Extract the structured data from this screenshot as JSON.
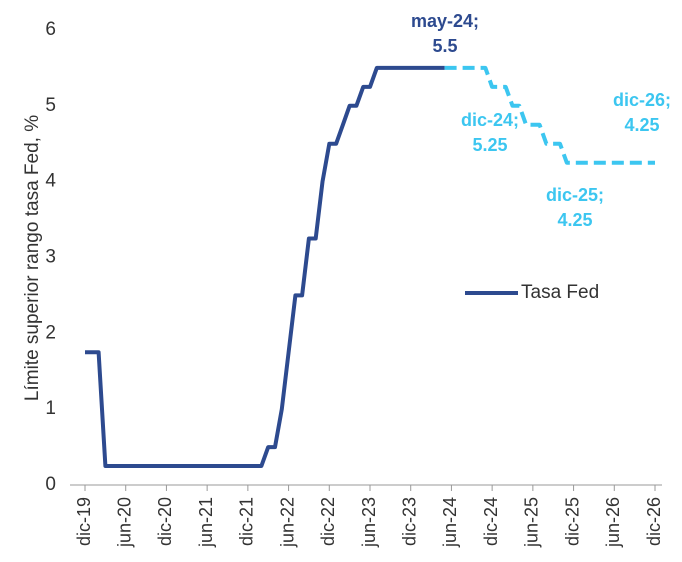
{
  "chart_data": {
    "type": "line",
    "y_label": "Límite superior rango tasa Fed, %",
    "categories": [
      "dic-19",
      null,
      null,
      null,
      null,
      null,
      "jun-20",
      null,
      null,
      null,
      null,
      null,
      "dic-20",
      null,
      null,
      null,
      null,
      null,
      "jun-21",
      null,
      null,
      null,
      null,
      null,
      "dic-21",
      null,
      null,
      null,
      null,
      null,
      "jun-22",
      null,
      null,
      null,
      null,
      null,
      "dic-22",
      null,
      null,
      null,
      null,
      null,
      "jun-23",
      null,
      null,
      null,
      null,
      null,
      "dic-23",
      null,
      null,
      null,
      null,
      null,
      "jun-24",
      null,
      null,
      null,
      null,
      null,
      "dic-24",
      null,
      null,
      null,
      null,
      null,
      "jun-25",
      null,
      null,
      null,
      null,
      null,
      "dic-25",
      null,
      null,
      null,
      null,
      null,
      "jun-26",
      null,
      null,
      null,
      null,
      null,
      "dic-26"
    ],
    "series": [
      {
        "name": "Tasa Fed",
        "color": "#2d4a8f",
        "dashed": false,
        "values": [
          1.75,
          1.75,
          1.75,
          0.25,
          0.25,
          0.25,
          0.25,
          0.25,
          0.25,
          0.25,
          0.25,
          0.25,
          0.25,
          0.25,
          0.25,
          0.25,
          0.25,
          0.25,
          0.25,
          0.25,
          0.25,
          0.25,
          0.25,
          0.25,
          0.25,
          0.25,
          0.25,
          0.5,
          0.5,
          1.0,
          1.75,
          2.5,
          2.5,
          3.25,
          3.25,
          4.0,
          4.5,
          4.5,
          4.75,
          5.0,
          5.0,
          5.25,
          5.25,
          5.5,
          5.5,
          5.5,
          5.5,
          5.5,
          5.5,
          5.5,
          5.5,
          5.5,
          5.5,
          5.5,
          null,
          null,
          null,
          null,
          null,
          null,
          null,
          null,
          null,
          null,
          null,
          null,
          null,
          null,
          null,
          null,
          null,
          null,
          null,
          null,
          null,
          null,
          null,
          null,
          null,
          null,
          null,
          null,
          null,
          null,
          null
        ]
      },
      {
        "color": "#3cc6f0",
        "dashed": true,
        "values": [
          null,
          null,
          null,
          null,
          null,
          null,
          null,
          null,
          null,
          null,
          null,
          null,
          null,
          null,
          null,
          null,
          null,
          null,
          null,
          null,
          null,
          null,
          null,
          null,
          null,
          null,
          null,
          null,
          null,
          null,
          null,
          null,
          null,
          null,
          null,
          null,
          null,
          null,
          null,
          null,
          null,
          null,
          null,
          null,
          null,
          null,
          null,
          null,
          null,
          null,
          null,
          null,
          null,
          5.5,
          5.5,
          5.5,
          5.5,
          5.5,
          5.5,
          5.5,
          5.25,
          5.25,
          5.25,
          5.0,
          5.0,
          4.75,
          4.75,
          4.75,
          4.5,
          4.5,
          4.5,
          4.25,
          4.25,
          4.25,
          4.25,
          4.25,
          4.25,
          4.25,
          4.25,
          4.25,
          4.25,
          4.25,
          4.25,
          4.25,
          4.25
        ]
      }
    ],
    "annotations": [
      {
        "lines": [
          "may-24;",
          "5.5"
        ]
      },
      {
        "lines": [
          "dic-24;",
          "5.25"
        ]
      },
      {
        "lines": [
          "dic-25;",
          "4.25"
        ]
      },
      {
        "lines": [
          "dic-26;",
          "4.25"
        ]
      }
    ],
    "ylim": [
      0,
      6
    ],
    "yticks": [
      0,
      1,
      2,
      3,
      4,
      5,
      6
    ],
    "grid": false,
    "legend": "right"
  }
}
